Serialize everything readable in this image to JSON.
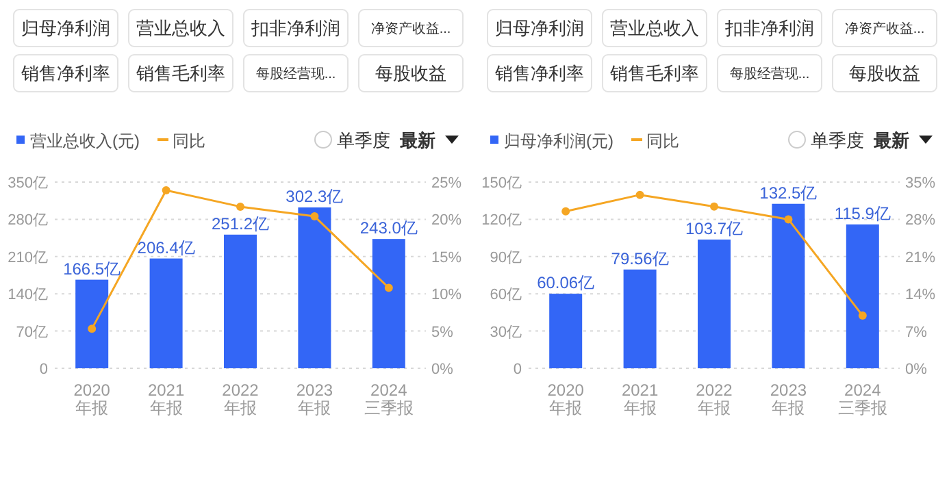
{
  "chart_data": [
    {
      "type": "bar",
      "categories": [
        "2020\n年报",
        "2021\n年报",
        "2022\n年报",
        "2023\n年报",
        "2024\n三季报"
      ],
      "series": [
        {
          "name": "营业总收入(元)",
          "color": "#3366f6",
          "values": [
            166.5,
            206.4,
            251.2,
            302.3,
            243.0
          ],
          "value_labels": [
            "166.5亿",
            "206.4亿",
            "251.2亿",
            "302.3亿",
            "243.0亿"
          ]
        },
        {
          "name": "同比",
          "type": "line",
          "axis": "y2",
          "color": "#f5a623",
          "values": [
            5.3,
            23.9,
            21.7,
            20.4,
            10.8
          ]
        }
      ],
      "ylim": [
        0,
        350
      ],
      "yticks": [
        0,
        {
          "value": 70,
          "label": "70亿"
        },
        {
          "value": 140,
          "label": "140亿"
        },
        {
          "value": 210,
          "label": "210亿"
        },
        {
          "value": 280,
          "label": "280亿"
        },
        {
          "value": 350,
          "label": "350亿"
        }
      ],
      "y2lim": [
        0,
        25
      ],
      "y2ticks": [
        {
          "value": 0,
          "label": "0%"
        },
        {
          "value": 5,
          "label": "5%"
        },
        {
          "value": 10,
          "label": "10%"
        },
        {
          "value": 15,
          "label": "15%"
        },
        {
          "value": 20,
          "label": "20%"
        },
        {
          "value": 25,
          "label": "25%"
        }
      ],
      "grid": "y",
      "legend": "top left",
      "marker": "circle",
      "annotations": [
        "归母净利润",
        "营业总收入",
        "扣非净利润",
        "净资产收益...",
        "销售净利率",
        "销售毛利率",
        "每股经营现...",
        "每股收益",
        "单季度",
        "最新"
      ]
    },
    {
      "type": "bar",
      "categories": [
        "2020\n年报",
        "2021\n年报",
        "2022\n年报",
        "2023\n年报",
        "2024\n三季报"
      ],
      "series": [
        {
          "name": "归母净利润(元)",
          "color": "#3366f6",
          "values": [
            60.06,
            79.56,
            103.7,
            132.5,
            115.9
          ],
          "value_labels": [
            "60.06亿",
            "79.56亿",
            "103.7亿",
            "132.5亿",
            "115.9亿"
          ]
        },
        {
          "name": "同比",
          "type": "line",
          "axis": "y2",
          "color": "#f5a623",
          "values": [
            29.5,
            32.6,
            30.4,
            28.0,
            9.9
          ]
        }
      ],
      "ylim": [
        0,
        150
      ],
      "yticks": [
        0,
        {
          "value": 30,
          "label": "30亿"
        },
        {
          "value": 60,
          "label": "60亿"
        },
        {
          "value": 90,
          "label": "90亿"
        },
        {
          "value": 120,
          "label": "120亿"
        },
        {
          "value": 150,
          "label": "150亿"
        }
      ],
      "y2lim": [
        0,
        35
      ],
      "y2ticks": [
        {
          "value": 0,
          "label": "0%"
        },
        {
          "value": 7,
          "label": "7%"
        },
        {
          "value": 14,
          "label": "14%"
        },
        {
          "value": 21,
          "label": "21%"
        },
        {
          "value": 28,
          "label": "28%"
        },
        {
          "value": 35,
          "label": "35%"
        }
      ],
      "grid": "y",
      "legend": "top left",
      "marker": "circle",
      "annotations": [
        "归母净利润",
        "营业总收入",
        "扣非净利润",
        "净资产收益...",
        "销售净利率",
        "销售毛利率",
        "每股经营现...",
        "每股收益",
        "单季度",
        "最新"
      ]
    }
  ]
}
